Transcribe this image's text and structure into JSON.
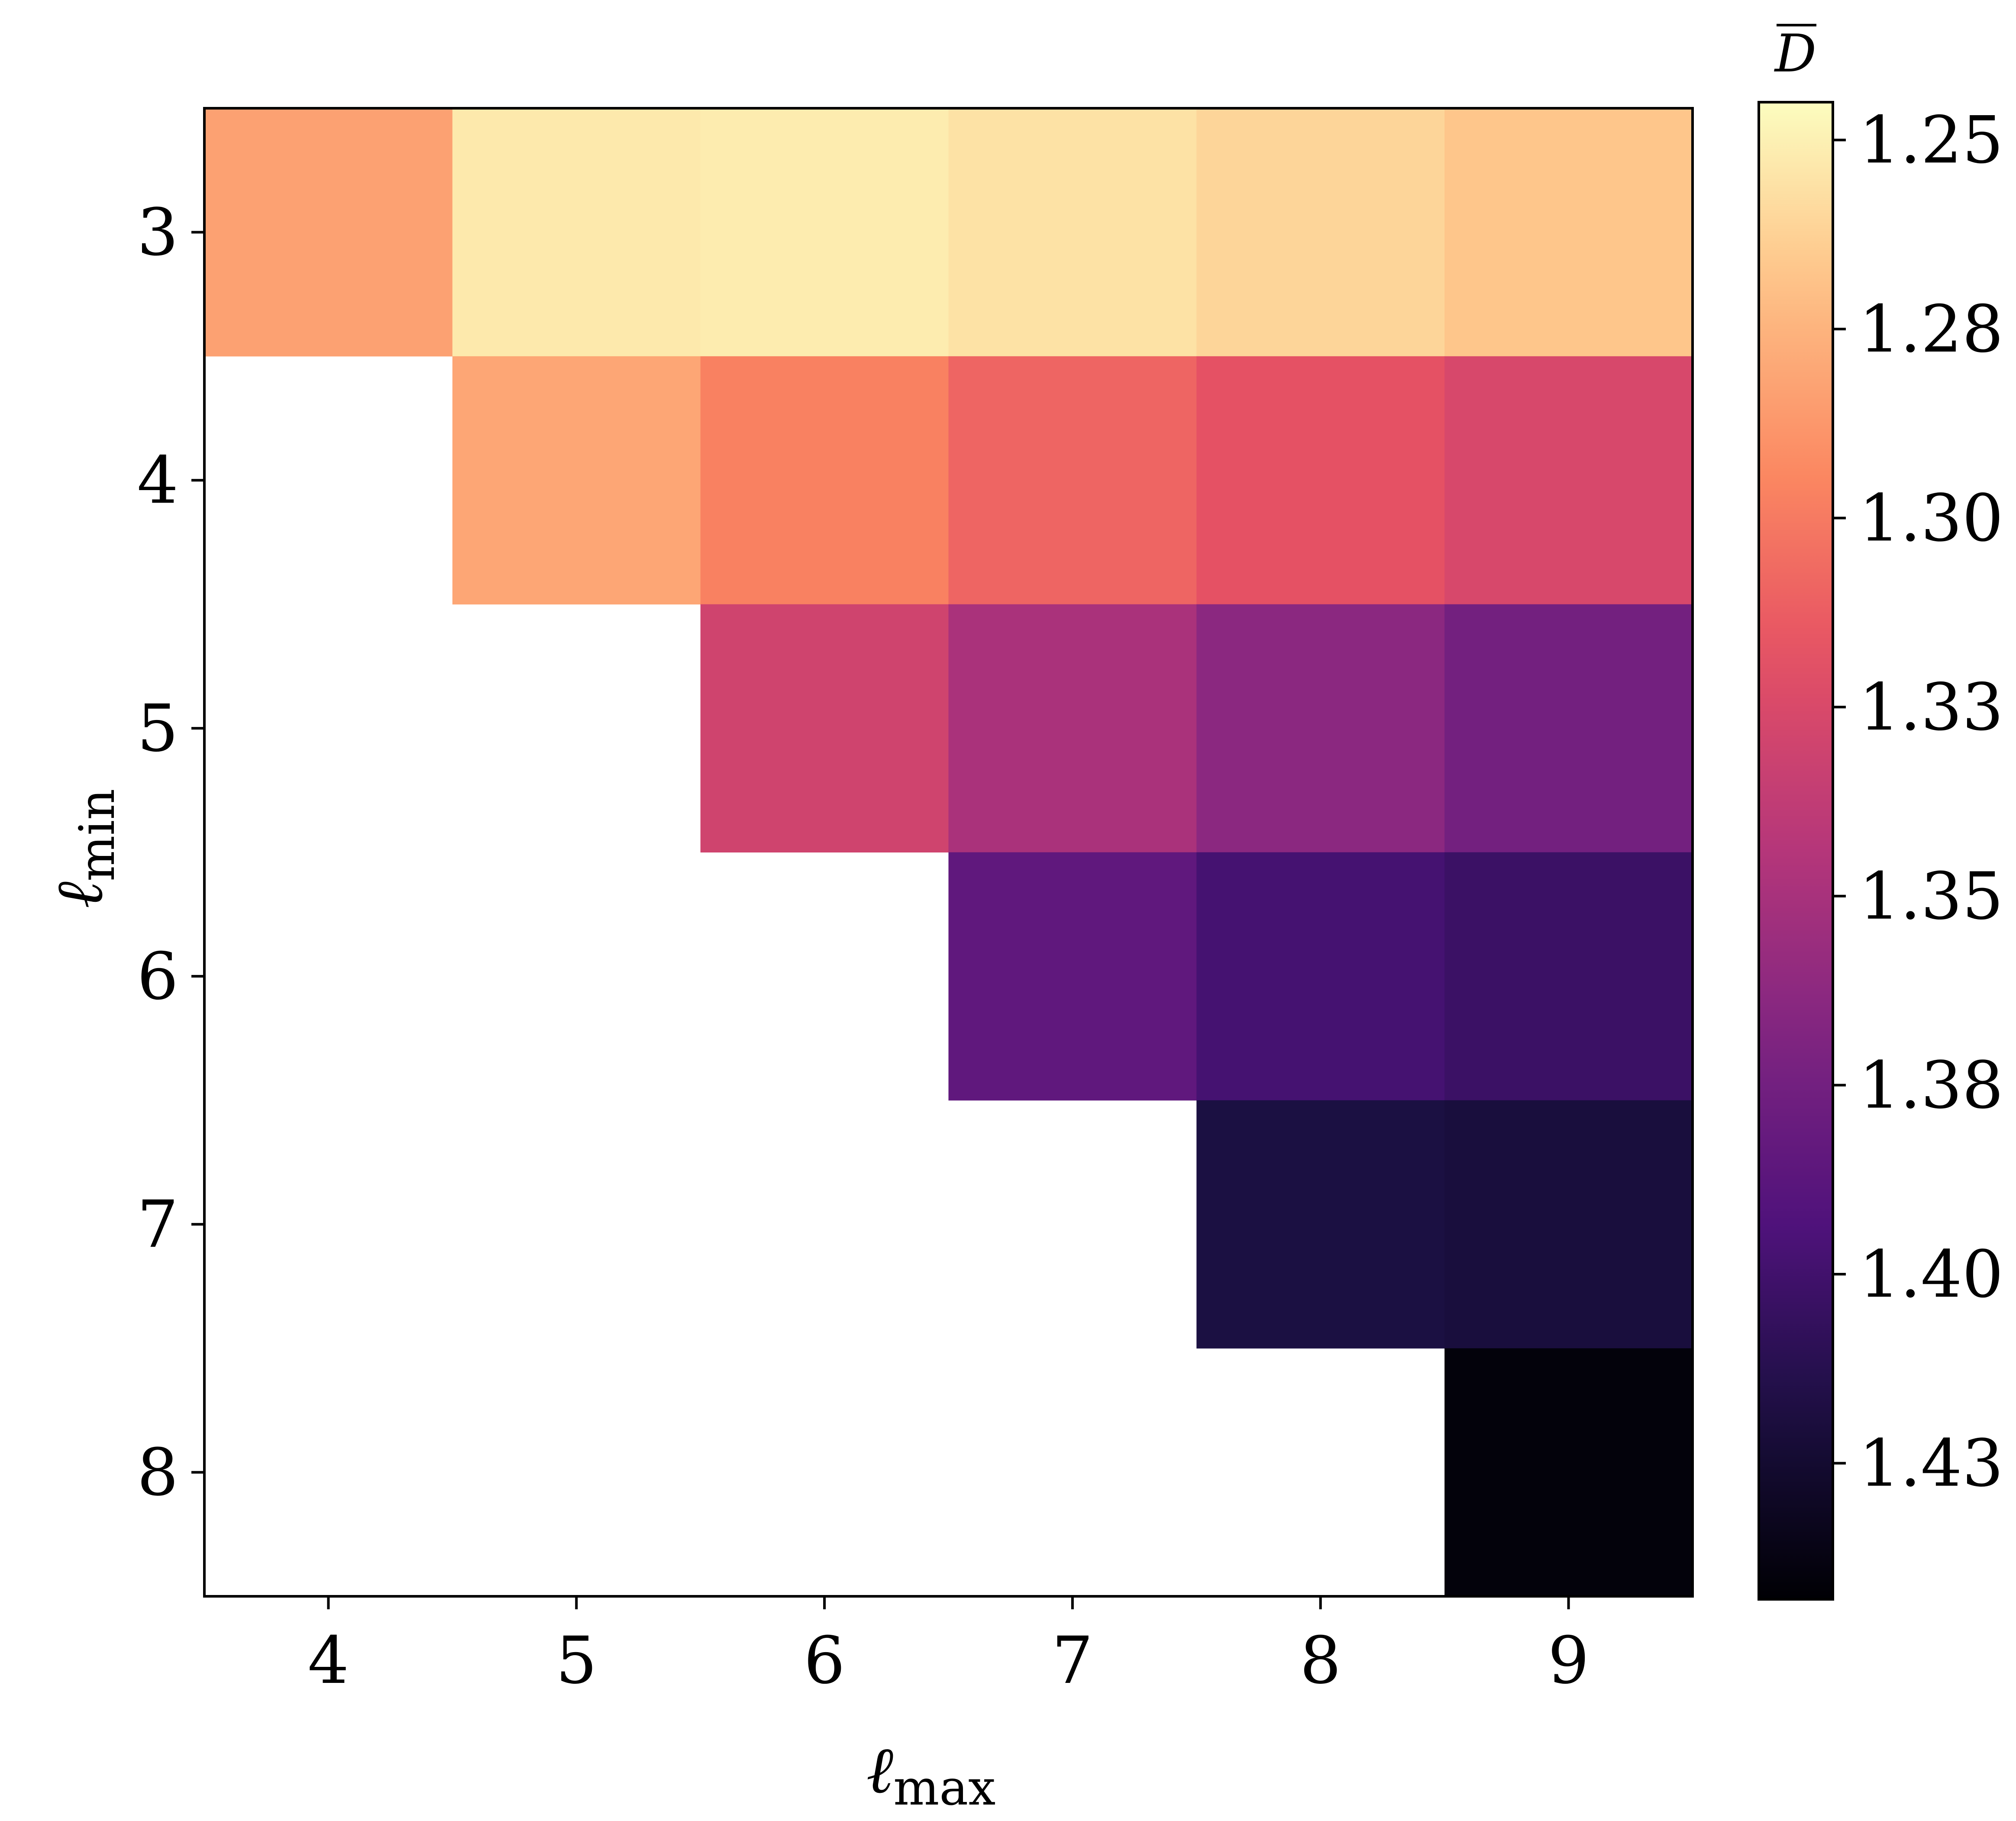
{
  "chart_data": {
    "type": "heatmap",
    "xlabel": "ℓ",
    "xlabel_sub": "max",
    "ylabel": "ℓ",
    "ylabel_sub": "min",
    "x_categories": [
      "4",
      "5",
      "6",
      "7",
      "8",
      "9"
    ],
    "y_categories": [
      "3",
      "4",
      "5",
      "6",
      "7",
      "8"
    ],
    "values": [
      [
        1.283,
        1.253,
        1.252,
        1.256,
        1.261,
        1.267
      ],
      [
        null,
        1.281,
        1.297,
        1.309,
        1.318,
        1.326
      ],
      [
        null,
        null,
        1.33,
        1.349,
        1.363,
        1.375
      ],
      [
        null,
        null,
        null,
        1.385,
        1.398,
        1.403
      ],
      [
        null,
        null,
        null,
        null,
        1.418,
        1.42
      ],
      [
        null,
        null,
        null,
        null,
        null,
        1.44
      ]
    ],
    "missing_color": "#ffffff",
    "colormap": "magma_r",
    "colorbar": {
      "title": "D",
      "title_overline": true,
      "range": [
        1.245,
        1.443
      ],
      "ticks": [
        1.25,
        1.275,
        1.3,
        1.325,
        1.35,
        1.375,
        1.4,
        1.425
      ],
      "tick_labels": [
        "1.25",
        "1.28",
        "1.30",
        "1.33",
        "1.35",
        "1.38",
        "1.40",
        "1.43"
      ],
      "inverted": true
    },
    "grid": false
  }
}
